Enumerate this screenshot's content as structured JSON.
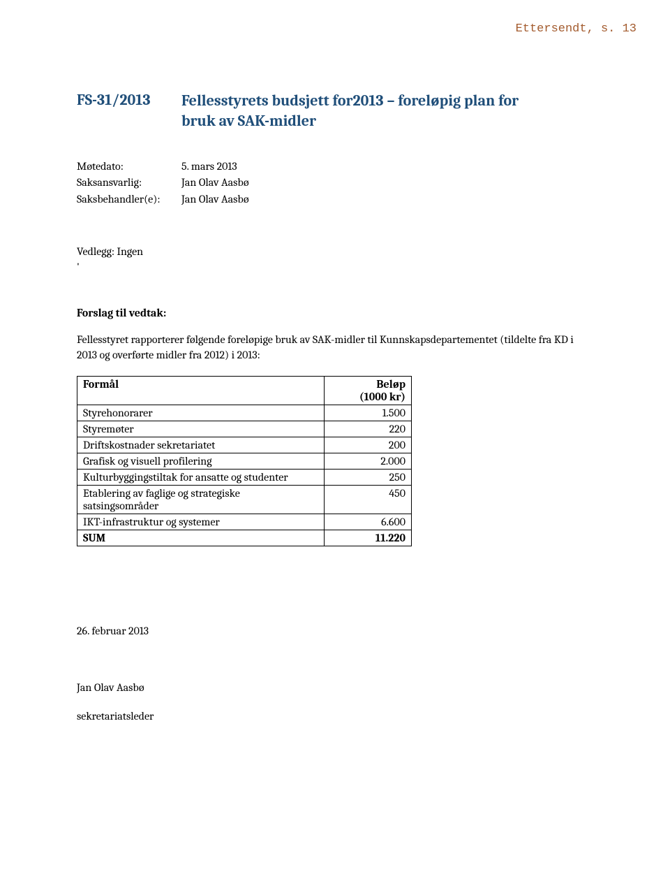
{
  "header_note": "Ettersendt, s. 13",
  "doc_id": "FS-31/2013",
  "doc_title_line1": "Fellesstyrets budsjett for2013 – foreløpig plan for",
  "doc_title_line2": "bruk av SAK-midler",
  "meta": {
    "motedato_label": "Møtedato:",
    "motedato_value": "5. mars 2013",
    "saksansvarlig_label": "Saksansvarlig:",
    "saksansvarlig_value": "Jan Olav Aasbø",
    "saksbehandler_label": "Saksbehandler(e):",
    "saksbehandler_value": "Jan Olav Aasbø"
  },
  "attachments": "Vedlegg: Ingen",
  "tick": "'",
  "proposal_heading": "Forslag til vedtak:",
  "proposal_text": "Fellesstyret rapporterer følgende foreløpige bruk av SAK-midler til Kunnskapsdepartementet (tildelte fra KD i 2013 og overførte midler fra 2012) i 2013:",
  "table": {
    "header_desc": "Formål",
    "header_amount_line1": "Beløp",
    "header_amount_line2": "(1000 kr)",
    "rows": [
      {
        "desc": "Styrehonorarer",
        "amount": "1.500"
      },
      {
        "desc": "Styremøter",
        "amount": "220"
      },
      {
        "desc": "Driftskostnader sekretariatet",
        "amount": "200"
      },
      {
        "desc": "Grafisk og visuell profilering",
        "amount": "2.000"
      },
      {
        "desc": "Kulturbyggingstiltak for ansatte og studenter",
        "amount": "250"
      },
      {
        "desc_line1": "Etablering av faglige og strategiske",
        "desc_line2": "satsingsområder",
        "amount": "450"
      },
      {
        "desc": "IKT-infrastruktur og systemer",
        "amount": "6.600"
      }
    ],
    "sum_label": "SUM",
    "sum_value": "11.220"
  },
  "footer": {
    "date": "26. februar 2013",
    "name": "Jan Olav Aasbø",
    "role": "sekretariatsleder"
  },
  "colors": {
    "heading": "#1f4e79",
    "header_note": "#a35b2e",
    "text": "#000000",
    "border": "#000000",
    "background": "#ffffff"
  },
  "typography": {
    "body_font": "Cambria/Georgia serif",
    "header_note_font": "Courier New monospace",
    "title_fontsize_pt": 16,
    "body_fontsize_pt": 12
  }
}
